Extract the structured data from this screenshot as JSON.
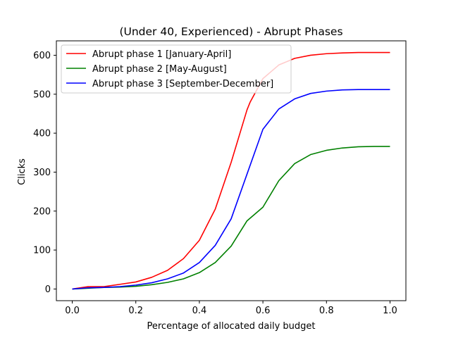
{
  "chart_data": {
    "type": "line",
    "title": "(Under 40, Experienced) - Abrupt Phases",
    "xlabel": "Percentage of allocated daily budget",
    "ylabel": "Clicks",
    "xlim": [
      -0.05,
      1.05
    ],
    "ylim": [
      -30,
      637
    ],
    "xticks": [
      0.0,
      0.2,
      0.4,
      0.6,
      0.8,
      1.0
    ],
    "xtick_labels": [
      "0.0",
      "0.2",
      "0.4",
      "0.6",
      "0.8",
      "1.0"
    ],
    "yticks": [
      0,
      100,
      200,
      300,
      400,
      500,
      600
    ],
    "ytick_labels": [
      "0",
      "100",
      "200",
      "300",
      "400",
      "500",
      "600"
    ],
    "grid": false,
    "legend_position": "upper-left",
    "series": [
      {
        "name": "Abrupt phase 1 [January-April]",
        "color": "#ff0000",
        "x": [
          0.0,
          0.05,
          0.1,
          0.15,
          0.2,
          0.25,
          0.3,
          0.35,
          0.4,
          0.45,
          0.5,
          0.55,
          0.56,
          0.6,
          0.65,
          0.7,
          0.75,
          0.8,
          0.85,
          0.9,
          0.95,
          1.0
        ],
        "y": [
          0,
          6,
          6,
          12,
          18,
          30,
          48,
          78,
          125,
          205,
          325,
          460,
          480,
          540,
          575,
          592,
          600,
          604,
          606,
          607,
          607,
          607
        ]
      },
      {
        "name": "Abrupt phase 2 [May-August]",
        "color": "#008000",
        "x": [
          0.0,
          0.05,
          0.1,
          0.15,
          0.2,
          0.25,
          0.3,
          0.35,
          0.4,
          0.45,
          0.5,
          0.55,
          0.56,
          0.6,
          0.65,
          0.7,
          0.75,
          0.8,
          0.85,
          0.9,
          0.95,
          1.0
        ],
        "y": [
          0,
          2,
          4,
          5,
          7,
          11,
          17,
          26,
          42,
          68,
          110,
          175,
          182,
          210,
          278,
          322,
          345,
          356,
          362,
          365,
          366,
          366
        ]
      },
      {
        "name": "Abrupt phase 3 [September-December]",
        "color": "#0000ff",
        "x": [
          0.0,
          0.05,
          0.1,
          0.15,
          0.2,
          0.25,
          0.3,
          0.35,
          0.4,
          0.45,
          0.5,
          0.55,
          0.6,
          0.65,
          0.7,
          0.75,
          0.8,
          0.85,
          0.9,
          0.95,
          1.0
        ],
        "y": [
          0,
          3,
          4,
          6,
          10,
          16,
          26,
          41,
          68,
          112,
          180,
          295,
          410,
          462,
          488,
          502,
          508,
          511,
          512,
          512,
          512
        ]
      }
    ]
  }
}
